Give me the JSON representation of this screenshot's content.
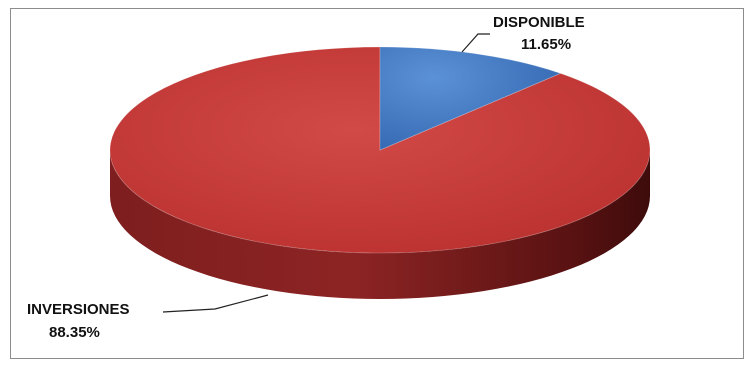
{
  "chart_data": {
    "type": "pie",
    "style": "3d",
    "title": "",
    "slices": [
      {
        "label": "INVERSIONES",
        "value": 88.35,
        "value_label": "88.35%",
        "color": "#c0393b"
      },
      {
        "label": "DISPONIBLE",
        "value": 11.65,
        "value_label": "11.65%",
        "color": "#3e78c4"
      }
    ],
    "legend": "none",
    "data_labels": "outside-with-leader"
  }
}
